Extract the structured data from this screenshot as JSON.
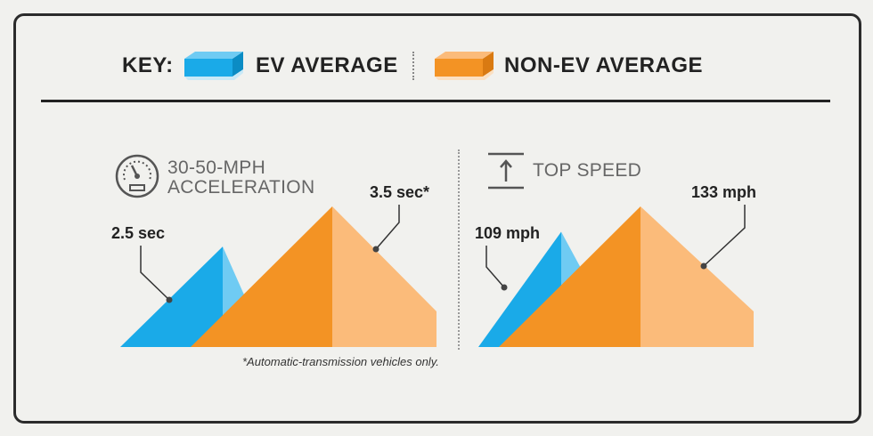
{
  "key": {
    "title": "KEY:",
    "ev_label": "EV AVERAGE",
    "non_ev_label": "NON-EV AVERAGE"
  },
  "colors": {
    "ev": "#1aaae8",
    "ev_light": "#6fcbf3",
    "non_ev": "#f39324",
    "non_ev_light": "#fbbb7a"
  },
  "footnote": "*Automatic-transmission vehicles only.",
  "chart_data": [
    {
      "type": "area",
      "title_line1": "30-50-MPH",
      "title_line2": "ACCELERATION",
      "icon": "speedometer-icon",
      "series": [
        {
          "name": "EV AVERAGE",
          "value": 2.5,
          "label": "2.5 sec"
        },
        {
          "name": "NON-EV AVERAGE",
          "value": 3.5,
          "label": "3.5 sec*"
        }
      ],
      "ylim": [
        0,
        3.5
      ]
    },
    {
      "type": "area",
      "title_line1": "TOP SPEED",
      "icon": "arrow-up-bar-icon",
      "series": [
        {
          "name": "EV AVERAGE",
          "value": 109,
          "label": "109 mph"
        },
        {
          "name": "NON-EV AVERAGE",
          "value": 133,
          "label": "133 mph"
        }
      ],
      "ylim": [
        0,
        133
      ]
    }
  ]
}
